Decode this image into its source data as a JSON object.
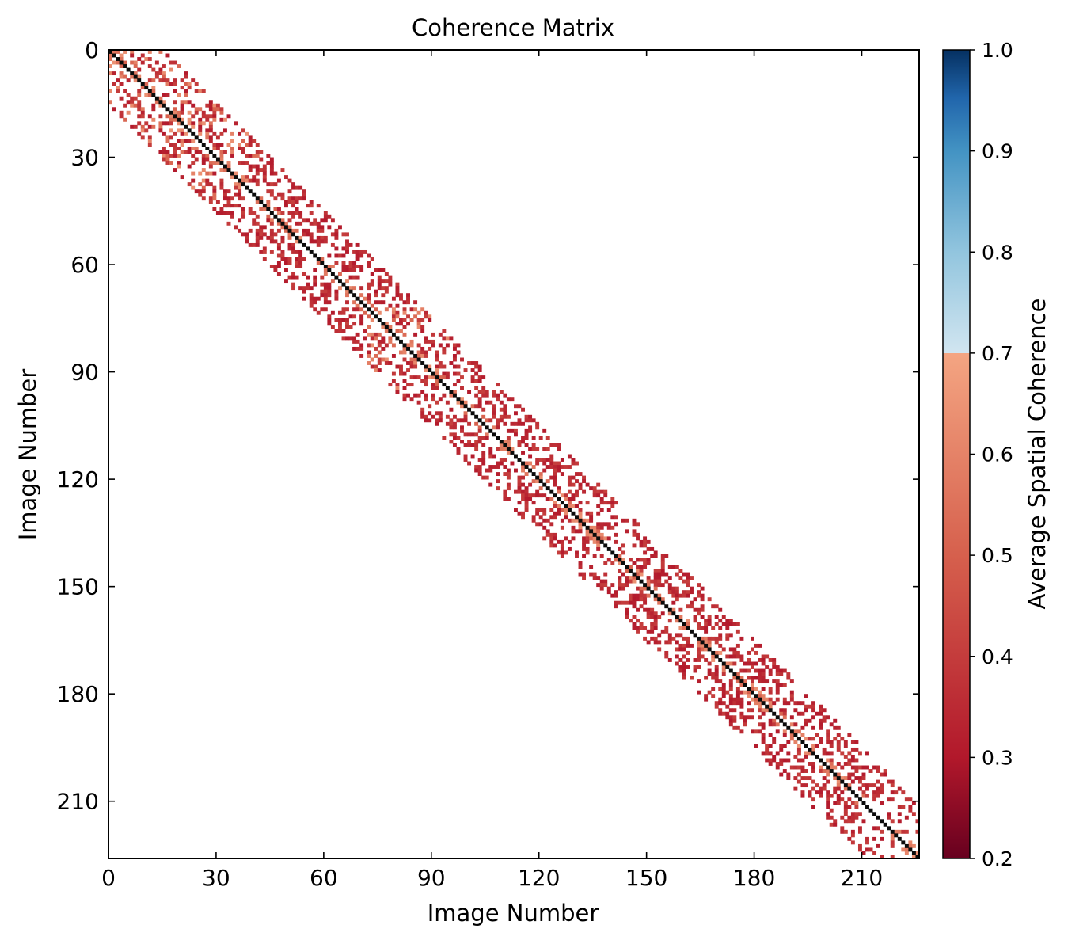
{
  "chart_data": {
    "type": "heatmap",
    "title": "Coherence Matrix",
    "xlabel": "Image Number",
    "ylabel": "Image Number",
    "n_images": 226,
    "xlim": [
      0,
      226
    ],
    "ylim": [
      226,
      0
    ],
    "xticks": [
      0,
      30,
      60,
      90,
      120,
      150,
      180,
      210
    ],
    "yticks": [
      0,
      30,
      60,
      90,
      120,
      150,
      180,
      210
    ],
    "diagonal_value": 1.0,
    "off_diagonal_band_halfwidth": 16,
    "typical_off_diagonal_value": 0.35,
    "masked_below": 0.3,
    "colorbar": {
      "label": "Average Spatial Coherence",
      "min": 0.2,
      "max": 1.0,
      "ticks": [
        "0.2",
        "0.3",
        "0.4",
        "0.5",
        "0.6",
        "0.7",
        "0.8",
        "0.9",
        "1.0"
      ],
      "colormap": "RdBu",
      "colors": [
        "#67001f",
        "#b2182b",
        "#d6604d",
        "#f4a582",
        "#d1e5f0",
        "#92c5de",
        "#4393c3",
        "#2166ac",
        "#053061"
      ]
    },
    "grid": false
  }
}
